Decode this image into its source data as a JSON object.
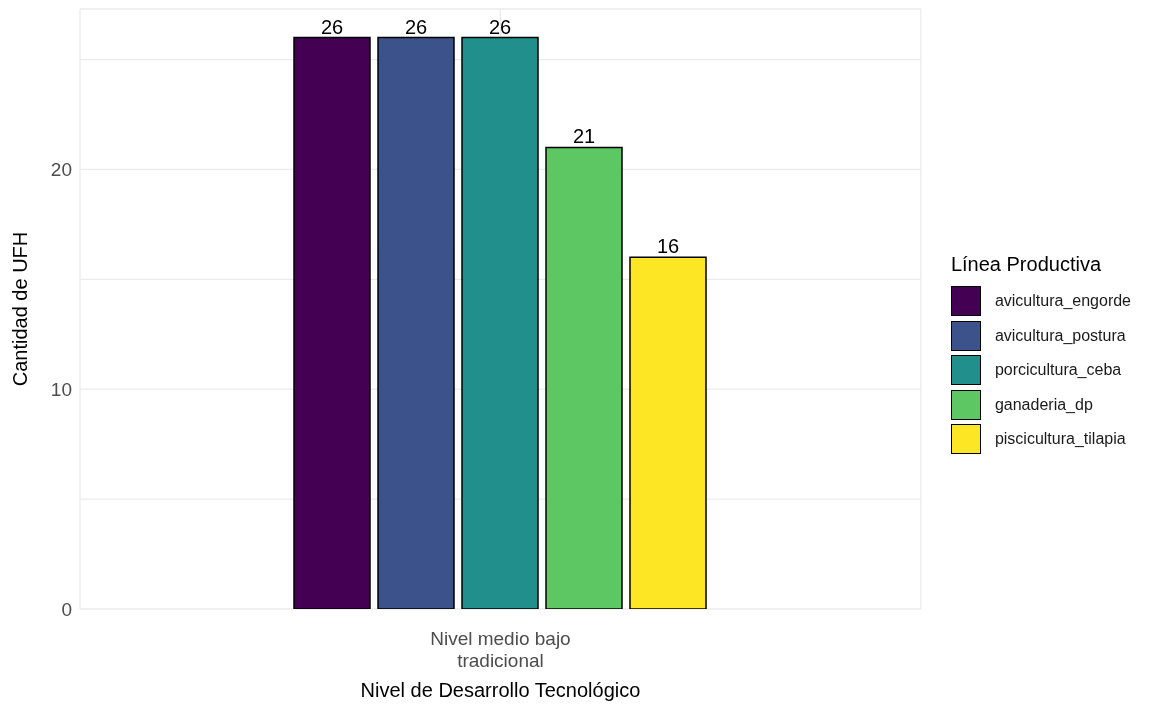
{
  "chart_data": {
    "type": "bar",
    "xlabel": "Nivel de Desarrollo Tecnológico",
    "ylabel": "Cantidad de UFH",
    "legend_title": "Línea Productiva",
    "categories": [
      "Nivel medio bajo tradicional"
    ],
    "series": [
      {
        "name": "avicultura_engorde",
        "color": "#440154",
        "values": [
          26
        ]
      },
      {
        "name": "avicultura_postura",
        "color": "#3b528b",
        "values": [
          26
        ]
      },
      {
        "name": "porcicultura_ceba",
        "color": "#21908c",
        "values": [
          26
        ]
      },
      {
        "name": "ganaderia_dp",
        "color": "#5dc863",
        "values": [
          21
        ]
      },
      {
        "name": "piscicultura_tilapia",
        "color": "#fde725",
        "values": [
          16
        ]
      }
    ],
    "ylim": [
      0,
      27.3
    ],
    "yticks": [
      0,
      {
        "value": 5,
        "label": null
      },
      10,
      {
        "value": 15,
        "label": null
      },
      20,
      {
        "value": 25,
        "label": null
      }
    ],
    "grid": true,
    "legend": "right",
    "data_labels": true
  }
}
